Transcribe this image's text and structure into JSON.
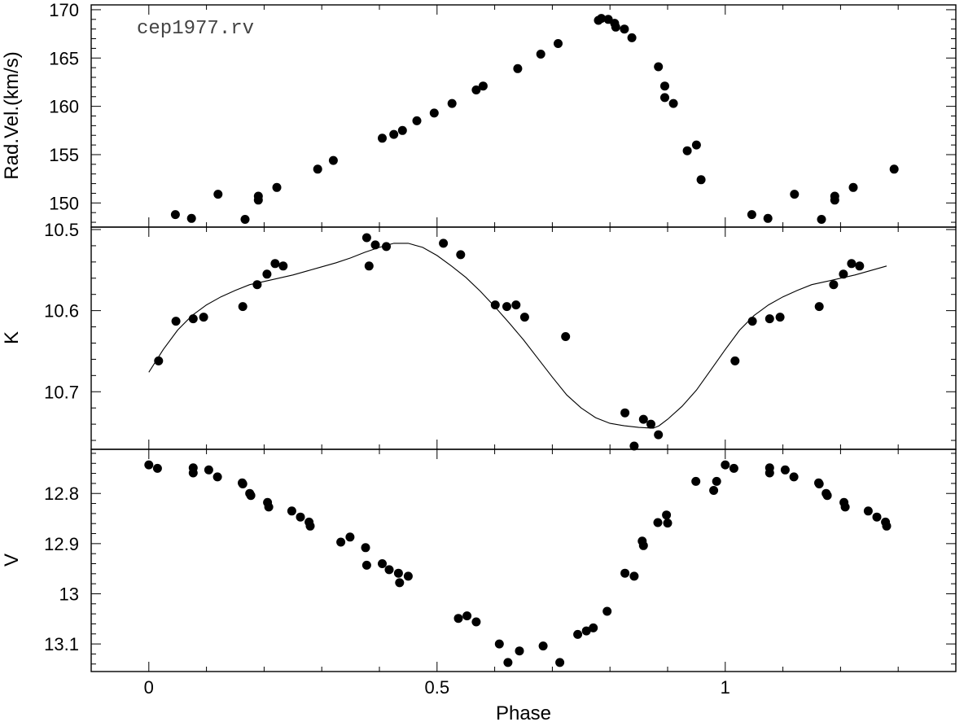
{
  "chart_data": [
    {
      "type": "scatter",
      "panel": "top",
      "ylabel": "Rad.Vel.(km/s)",
      "annotation": "cep1977.rv",
      "xlim": [
        -0.1,
        1.4
      ],
      "ylim": [
        147.5,
        170.5
      ],
      "yticks": [
        150,
        155,
        160,
        165,
        170
      ],
      "yticklabels": [
        "150",
        "155",
        "160",
        "165",
        "170"
      ],
      "series": [
        {
          "x": [
            0.046,
            0.074,
            0.12,
            0.167,
            0.19,
            0.19,
            0.222,
            0.293,
            0.32,
            0.405,
            0.425,
            0.44,
            0.465,
            0.495,
            0.526,
            0.568,
            0.58,
            0.64,
            0.68,
            0.71,
            0.78,
            0.785,
            0.797,
            0.808,
            0.81,
            0.825,
            0.838,
            0.884,
            0.895,
            0.895,
            0.91,
            0.934,
            0.95,
            0.958,
            1.046,
            1.074,
            1.12,
            1.167,
            1.19,
            1.19,
            1.222,
            1.293
          ],
          "y": [
            148.8,
            148.4,
            150.9,
            148.3,
            150.7,
            150.3,
            151.6,
            153.5,
            154.4,
            156.7,
            157.1,
            157.5,
            158.5,
            159.3,
            160.3,
            161.7,
            162.1,
            163.9,
            165.4,
            166.5,
            168.9,
            169.1,
            169.0,
            168.6,
            168.2,
            168.0,
            167.1,
            164.1,
            162.1,
            160.9,
            160.3,
            155.4,
            156.0,
            152.4,
            148.8,
            148.4,
            150.9,
            148.3,
            150.7,
            150.3,
            151.6,
            153.5
          ]
        }
      ]
    },
    {
      "type": "scatter",
      "panel": "middle",
      "ylabel": "K",
      "xlim": [
        -0.1,
        1.4
      ],
      "ylim": [
        10.771,
        10.497
      ],
      "yticks": [
        10.5,
        10.6,
        10.7
      ],
      "yticklabels": [
        "10.5",
        "10.6",
        "10.7"
      ],
      "series": [
        {
          "x": [
            0.017,
            0.047,
            0.077,
            0.095,
            0.163,
            0.188,
            0.205,
            0.219,
            0.233,
            0.378,
            0.382,
            0.393,
            0.412,
            0.511,
            0.541,
            0.601,
            0.621,
            0.637,
            0.652,
            0.723,
            0.826,
            0.842,
            0.858,
            0.871,
            0.884,
            1.017,
            1.047,
            1.077,
            1.095,
            1.163,
            1.188,
            1.205,
            1.219,
            1.233
          ],
          "y": [
            10.662,
            10.613,
            10.61,
            10.608,
            10.595,
            10.568,
            10.555,
            10.542,
            10.545,
            10.51,
            10.545,
            10.519,
            10.521,
            10.517,
            10.531,
            10.593,
            10.595,
            10.593,
            10.608,
            10.632,
            10.726,
            10.767,
            10.734,
            10.74,
            10.753,
            10.662,
            10.613,
            10.61,
            10.608,
            10.595,
            10.568,
            10.555,
            10.542,
            10.545
          ]
        },
        {
          "style": "line",
          "x": [
            0.0,
            0.025,
            0.05,
            0.075,
            0.1,
            0.125,
            0.15,
            0.175,
            0.2,
            0.225,
            0.25,
            0.275,
            0.3,
            0.325,
            0.35,
            0.375,
            0.4,
            0.425,
            0.45,
            0.475,
            0.5,
            0.525,
            0.55,
            0.575,
            0.6,
            0.625,
            0.65,
            0.675,
            0.7,
            0.725,
            0.75,
            0.775,
            0.8,
            0.825,
            0.85,
            0.875,
            0.885,
            0.9,
            0.925,
            0.95,
            0.975,
            1.0,
            1.025,
            1.05,
            1.075,
            1.1,
            1.125,
            1.15,
            1.175,
            1.2,
            1.225,
            1.25,
            1.28
          ],
          "y": [
            10.676,
            10.648,
            10.624,
            10.606,
            10.593,
            10.583,
            10.575,
            10.568,
            10.564,
            10.56,
            10.556,
            10.551,
            10.546,
            10.541,
            10.535,
            10.528,
            10.522,
            10.517,
            10.517,
            10.522,
            10.532,
            10.545,
            10.559,
            10.576,
            10.595,
            10.615,
            10.636,
            10.659,
            10.682,
            10.704,
            10.72,
            10.732,
            10.739,
            10.742,
            10.744,
            10.745,
            10.742,
            10.734,
            10.718,
            10.698,
            10.673,
            10.648,
            10.624,
            10.606,
            10.593,
            10.583,
            10.575,
            10.568,
            10.564,
            10.56,
            10.556,
            10.551,
            10.545
          ]
        }
      ]
    },
    {
      "type": "scatter",
      "panel": "bottom",
      "ylabel": "V",
      "xlabel": "Phase",
      "xlim": [
        -0.1,
        1.4
      ],
      "ylim": [
        13.155,
        12.712
      ],
      "xticks": [
        0,
        0.5,
        1
      ],
      "xticklabels": [
        "0",
        "0.5",
        "1"
      ],
      "yticks": [
        12.8,
        12.9,
        13.0,
        13.1
      ],
      "yticklabels": [
        "12.8",
        "12.9",
        "13",
        "13.1"
      ],
      "series": [
        {
          "x": [
            0.0,
            0.015,
            0.077,
            0.077,
            0.104,
            0.119,
            0.162,
            0.163,
            0.175,
            0.177,
            0.206,
            0.208,
            0.248,
            0.263,
            0.278,
            0.28,
            0.333,
            0.349,
            0.376,
            0.378,
            0.405,
            0.417,
            0.433,
            0.435,
            0.45,
            0.537,
            0.552,
            0.568,
            0.608,
            0.623,
            0.643,
            0.684,
            0.713,
            0.744,
            0.759,
            0.771,
            0.795,
            0.826,
            0.842,
            0.856,
            0.858,
            0.883,
            0.898,
            0.9,
            0.949,
            0.98,
            0.985,
            1.0,
            1.015,
            1.077,
            1.077,
            1.104,
            1.119,
            1.162,
            1.163,
            1.175,
            1.177,
            1.206,
            1.208,
            1.248,
            1.263,
            1.278,
            1.28
          ],
          "y": [
            12.743,
            12.75,
            12.749,
            12.759,
            12.753,
            12.767,
            12.779,
            12.781,
            12.8,
            12.804,
            12.818,
            12.827,
            12.835,
            12.847,
            12.857,
            12.865,
            12.897,
            12.887,
            12.908,
            12.943,
            12.94,
            12.952,
            12.959,
            12.978,
            12.965,
            13.049,
            13.044,
            13.056,
            13.1,
            13.137,
            13.114,
            13.104,
            13.137,
            13.081,
            13.074,
            13.068,
            13.035,
            12.959,
            12.965,
            12.895,
            12.904,
            12.858,
            12.843,
            12.859,
            12.776,
            12.794,
            12.776,
            12.743,
            12.75,
            12.749,
            12.759,
            12.753,
            12.767,
            12.779,
            12.781,
            12.8,
            12.804,
            12.818,
            12.827,
            12.835,
            12.847,
            12.857,
            12.865
          ]
        }
      ]
    }
  ]
}
